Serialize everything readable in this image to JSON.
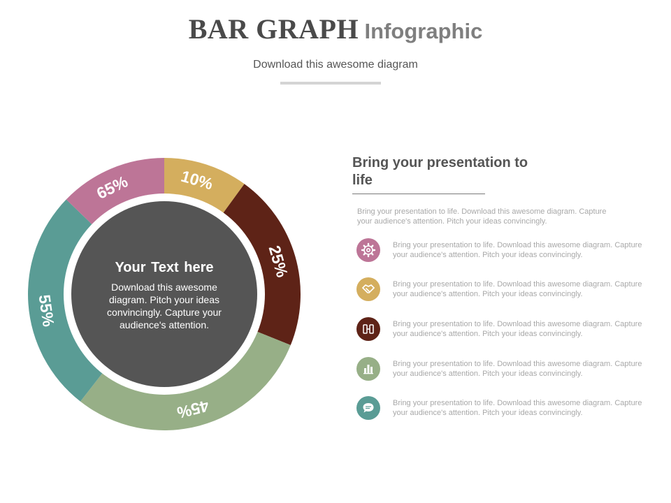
{
  "header": {
    "title_main": "BAR GRAPH",
    "title_sub": "Infographic",
    "subtitle": "Download this awesome diagram"
  },
  "donut": {
    "center_title": "Your  Text here",
    "center_body": "Download this awesome diagram. Pitch your ideas convincingly. Capture your audience's attention.",
    "segments": [
      {
        "label": "10%",
        "color": "#d4ae5e"
      },
      {
        "label": "25%",
        "color": "#5e2317"
      },
      {
        "label": "45%",
        "color": "#97af87"
      },
      {
        "label": "55%",
        "color": "#5a9c95"
      },
      {
        "label": "65%",
        "color": "#bd7597"
      }
    ],
    "colors": {
      "center": "#555555",
      "gap": "#ffffff"
    }
  },
  "panel": {
    "heading": "Bring your presentation to life",
    "intro": "Bring your presentation to life. Download this awesome diagram. Capture your audience's attention. Pitch your ideas convincingly.",
    "items": [
      {
        "icon": "gear-icon",
        "color": "#bd7597",
        "text": "Bring your presentation to life. Download this awesome diagram. Capture your audience's attention. Pitch your ideas convincingly."
      },
      {
        "icon": "handshake-icon",
        "color": "#d4ae5e",
        "text": "Bring your presentation to life. Download this awesome diagram. Capture your audience's attention. Pitch your ideas convincingly."
      },
      {
        "icon": "devices-icon",
        "color": "#5e2317",
        "text": "Bring your presentation to life. Download this awesome diagram. Capture your audience's attention. Pitch your ideas convincingly."
      },
      {
        "icon": "bar-chart-icon",
        "color": "#97af87",
        "text": "Bring your presentation to life. Download this awesome diagram. Capture your audience's attention. Pitch your ideas convincingly."
      },
      {
        "icon": "chat-bubble-icon",
        "color": "#5a9c95",
        "text": "Bring your presentation to life. Download this awesome diagram. Capture your audience's attention. Pitch your ideas convincingly."
      }
    ]
  }
}
